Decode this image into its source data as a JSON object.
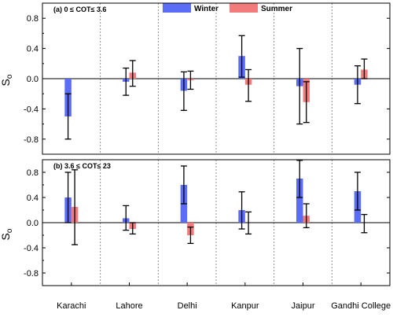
{
  "chart_data": {
    "type": "bar",
    "categories": [
      "Karachi",
      "Lahore",
      "Delhi",
      "Kanpur",
      "Jaipur",
      "Gandhi College"
    ],
    "legend": {
      "placement": "top-center",
      "entries": [
        {
          "name": "Winter",
          "color": "#5b6cf7"
        },
        {
          "name": "Summer",
          "color": "#f27b7b"
        }
      ]
    },
    "ylabel": "S",
    "ylabel_subscript": "o",
    "ylim": [
      -1.0,
      1.0
    ],
    "yticks": [
      "0.8",
      "0.4",
      "0.0",
      "-0.4",
      "-0.8"
    ],
    "ytick_values": [
      0.8,
      0.4,
      0.0,
      -0.4,
      -0.8
    ],
    "zero_line": true,
    "category_separators": "dotted",
    "panels": [
      {
        "label": "(a)  0 ≤ COT≤ 3.6",
        "series": [
          {
            "name": "Winter",
            "values": [
              -0.5,
              -0.04,
              -0.16,
              0.3,
              -0.1,
              -0.08
            ],
            "err_low": [
              -0.8,
              -0.22,
              -0.42,
              0.02,
              -0.6,
              -0.33
            ],
            "err_high": [
              -0.2,
              0.14,
              0.09,
              0.57,
              0.4,
              0.17
            ]
          },
          {
            "name": "Summer",
            "values": [
              0.0,
              0.08,
              -0.02,
              -0.08,
              -0.31,
              0.12
            ],
            "err_low": [
              0.0,
              -0.1,
              -0.14,
              -0.3,
              -0.58,
              0.0
            ],
            "err_high": [
              0.0,
              0.24,
              0.1,
              0.12,
              -0.04,
              0.26
            ]
          }
        ]
      },
      {
        "label": "(b)  3.6 ≤ COT≤ 23",
        "series": [
          {
            "name": "Winter",
            "values": [
              0.4,
              0.07,
              0.6,
              0.2,
              0.7,
              0.5
            ],
            "err_low": [
              0.0,
              -0.12,
              0.3,
              -0.1,
              0.4,
              0.2
            ],
            "err_high": [
              0.8,
              0.27,
              0.9,
              0.49,
              0.99,
              0.8
            ]
          },
          {
            "name": "Summer",
            "values": [
              0.25,
              -0.1,
              -0.2,
              0.0,
              0.11,
              0.0
            ],
            "err_low": [
              -0.35,
              -0.18,
              -0.33,
              -0.18,
              -0.08,
              -0.16
            ],
            "err_high": [
              0.84,
              0.0,
              -0.07,
              0.17,
              0.3,
              0.13
            ]
          }
        ]
      }
    ]
  }
}
